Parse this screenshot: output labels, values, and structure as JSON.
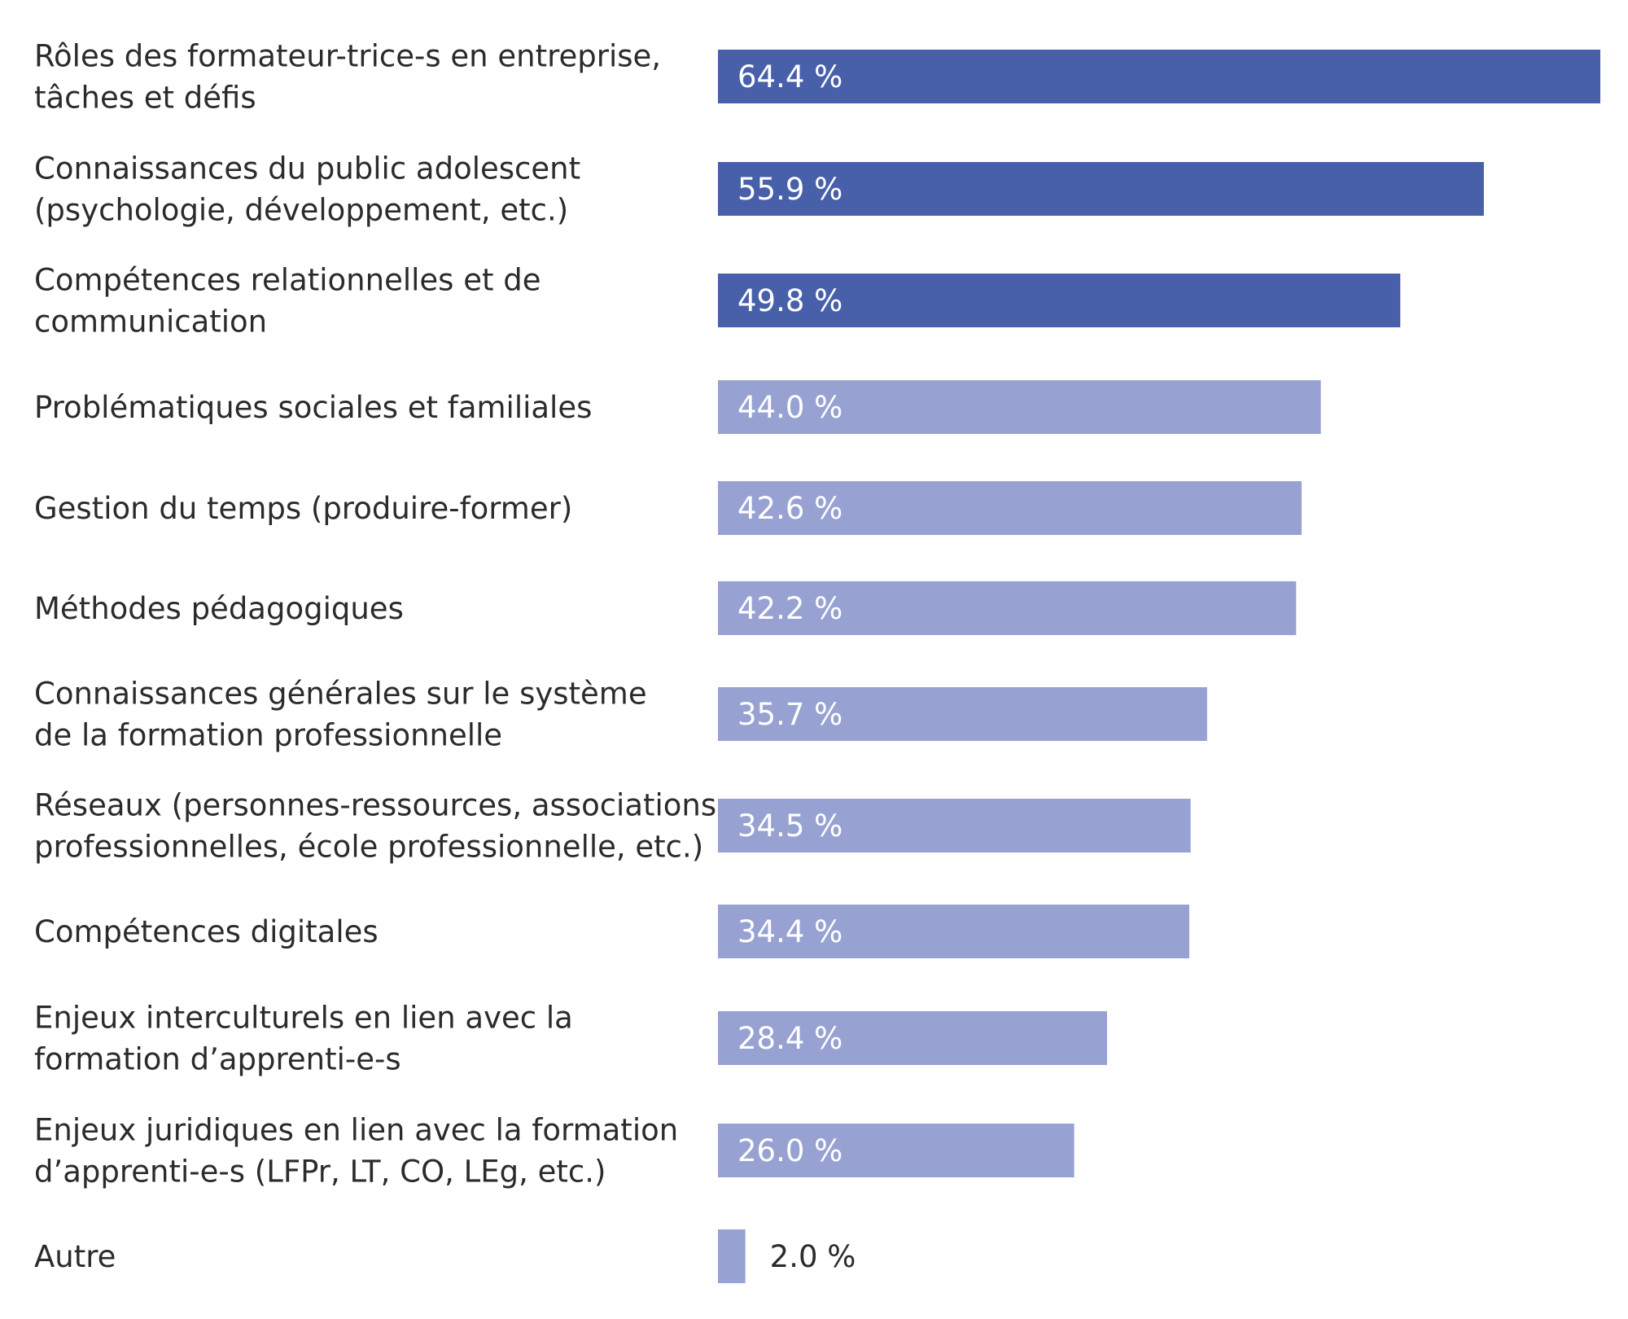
{
  "chart_data": {
    "type": "bar",
    "orientation": "horizontal",
    "categories": [
      [
        "Rôles des formateur-trice-s en entreprise,",
        "tâches et défis"
      ],
      [
        "Connaissances du public adolescent",
        "(psychologie, développement, etc.)"
      ],
      [
        "Compétences relationnelles et de",
        "communication"
      ],
      [
        "Problématiques sociales et familiales"
      ],
      [
        "Gestion du temps (produire-former)"
      ],
      [
        "Méthodes pédagogiques"
      ],
      [
        "Connaissances générales sur le système",
        "de la formation professionnelle"
      ],
      [
        "Réseaux (personnes-ressources, associations",
        "professionnelles, école professionnelle, etc.)"
      ],
      [
        "Compétences digitales"
      ],
      [
        "Enjeux interculturels en lien avec la",
        "formation d’apprenti-e-s"
      ],
      [
        "Enjeux juridiques en lien avec la formation",
        "d’apprenti-e-s (LFPr, LT, CO, LEg, etc.)"
      ],
      [
        "Autre"
      ]
    ],
    "values": [
      64.4,
      55.9,
      49.8,
      44.0,
      42.6,
      42.2,
      35.7,
      34.5,
      34.4,
      28.4,
      26.0,
      2.0
    ],
    "value_labels": [
      "64.4 %",
      "55.9 %",
      "49.8 %",
      "44.0 %",
      "42.6 %",
      "42.2 %",
      "35.7 %",
      "34.5 %",
      "34.4 %",
      "28.4 %",
      "26.0 %",
      "2.0 %"
    ],
    "highlight_top": 3,
    "colors": {
      "highlight": "#4860aa",
      "normal": "#98a2d2"
    },
    "xlim": [
      0,
      64.4
    ],
    "grid": false,
    "legend": "none"
  }
}
